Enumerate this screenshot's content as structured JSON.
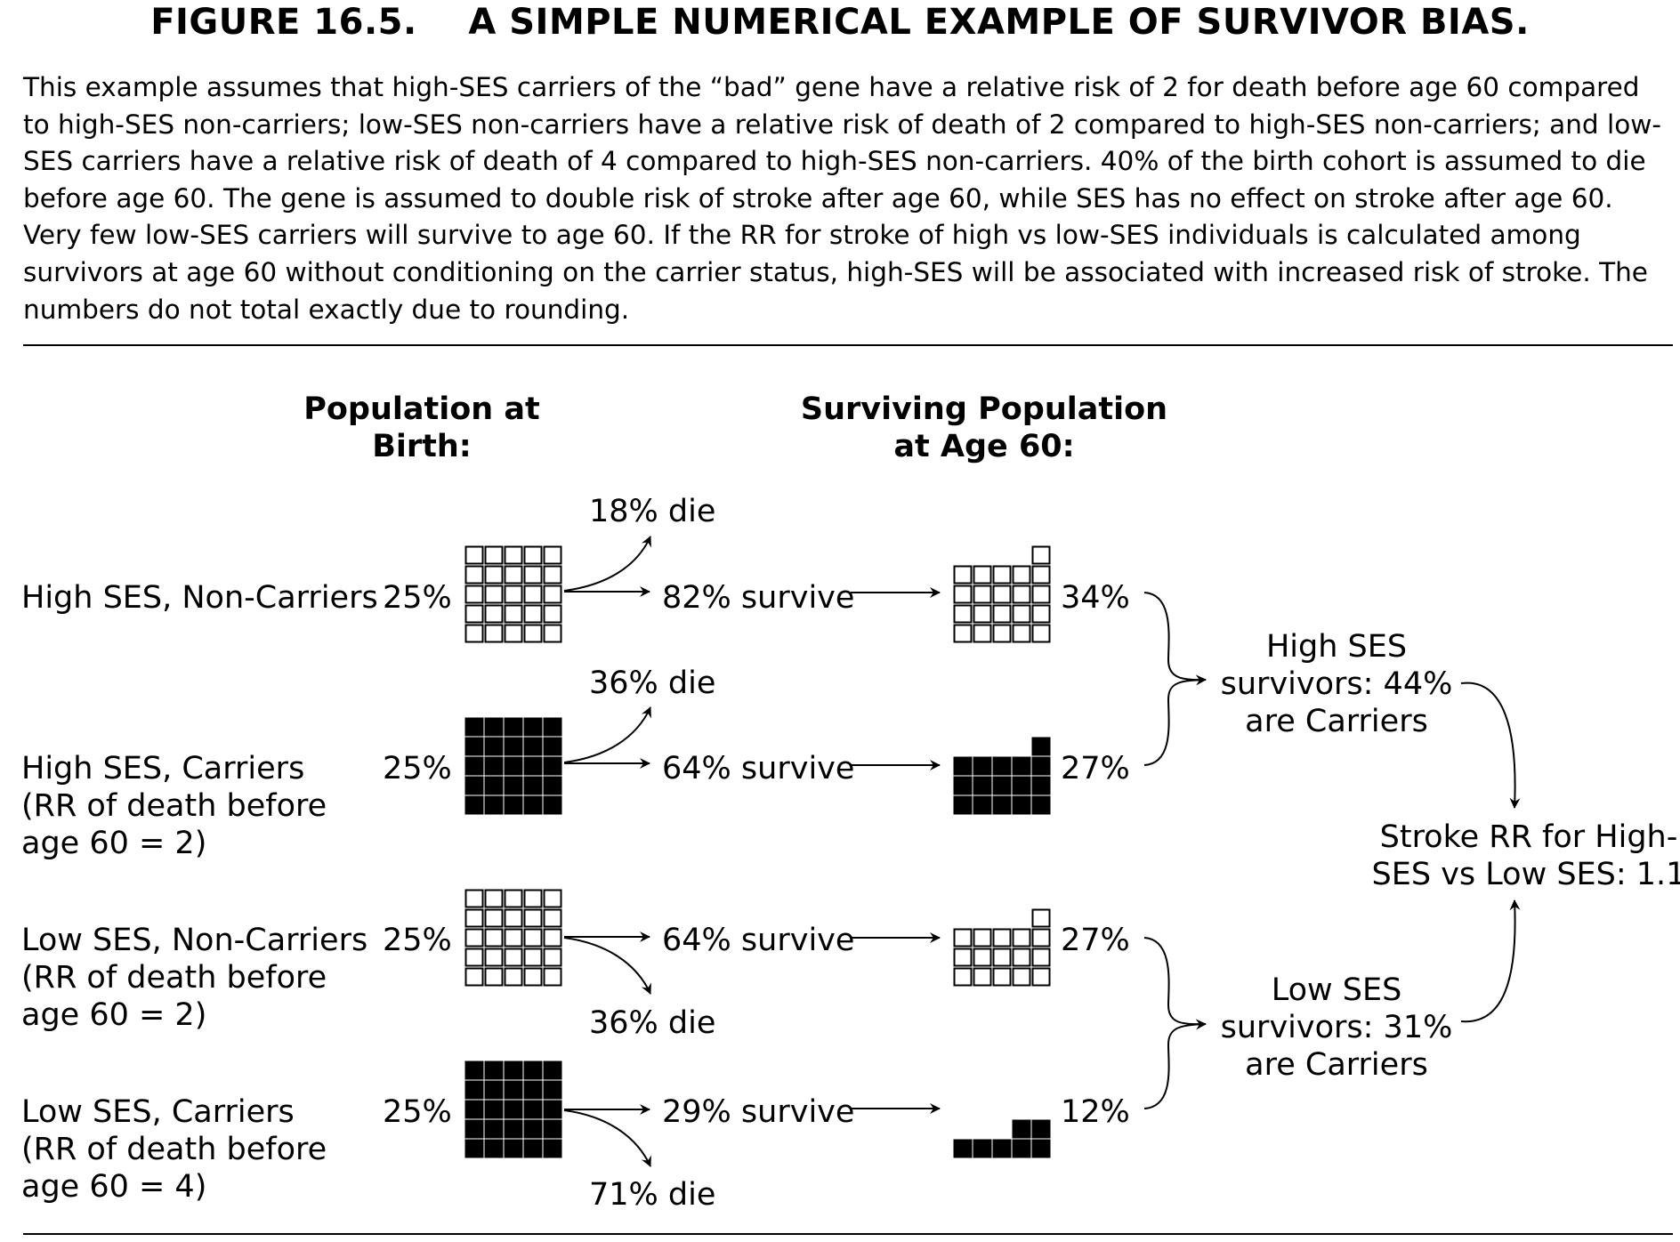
{
  "figure_title": "FIGURE 16.5.    A SIMPLE NUMERICAL EXAMPLE OF SURVIVOR BIAS.",
  "caption": "This example assumes that high-SES carriers of the “bad” gene have a relative risk of 2 for death before age 60 compared to high-SES non-carriers; low-SES non-carriers have a relative risk of death of 2 compared to high-SES non-carriers; and low-SES carriers have a relative risk of death of 4 compared to high-SES non-carriers. 40% of the birth cohort is assumed to die before age 60. The gene is assumed to double risk of stroke after age 60, while SES has no effect on stroke after age 60. Very few low-SES carriers will survive to age 60. If the RR for stroke of high vs low-SES individuals is calculated among survivors at age 60 without conditioning on the carrier status, high-SES will be associated with increased risk of stroke.  The numbers do not total exactly due to rounding.",
  "headers": {
    "birth": [
      "Population at",
      "Birth:"
    ],
    "age60": [
      "Surviving Population",
      "at Age 60:"
    ]
  },
  "groups": [
    {
      "label": [
        "High SES, Non-Carriers"
      ],
      "birth_pct": "25%",
      "die": "18% die",
      "survive": "82% survive",
      "age60_pct": "34%",
      "filled": false,
      "birth_squares": 25,
      "survivor_squares": 21
    },
    {
      "label": [
        "High SES, Carriers",
        "(RR of death before",
        "age 60 = 2)"
      ],
      "birth_pct": "25%",
      "die": "36% die",
      "survive": "64% survive",
      "age60_pct": "27%",
      "filled": true,
      "birth_squares": 25,
      "survivor_squares": 16
    },
    {
      "label": [
        "Low SES, Non-Carriers",
        "(RR of death before",
        "age 60 = 2)"
      ],
      "birth_pct": "25%",
      "die": "36% die",
      "survive": "64% survive",
      "age60_pct": "27%",
      "filled": false,
      "birth_squares": 25,
      "survivor_squares": 16
    },
    {
      "label": [
        "Low SES, Carriers",
        "(RR of death before",
        "age 60 = 4)"
      ],
      "birth_pct": "25%",
      "die": "71% die",
      "survive": "29% survive",
      "age60_pct": "12%",
      "filled": true,
      "birth_squares": 25,
      "survivor_squares": 7
    }
  ],
  "summaries": {
    "high": [
      "High SES",
      "survivors: 44%",
      "are Carriers"
    ],
    "low": [
      "Low SES",
      "survivors: 31%",
      "are Carriers"
    ],
    "stroke": [
      "Stroke RR for High-",
      "SES vs Low SES: 1.1"
    ]
  }
}
